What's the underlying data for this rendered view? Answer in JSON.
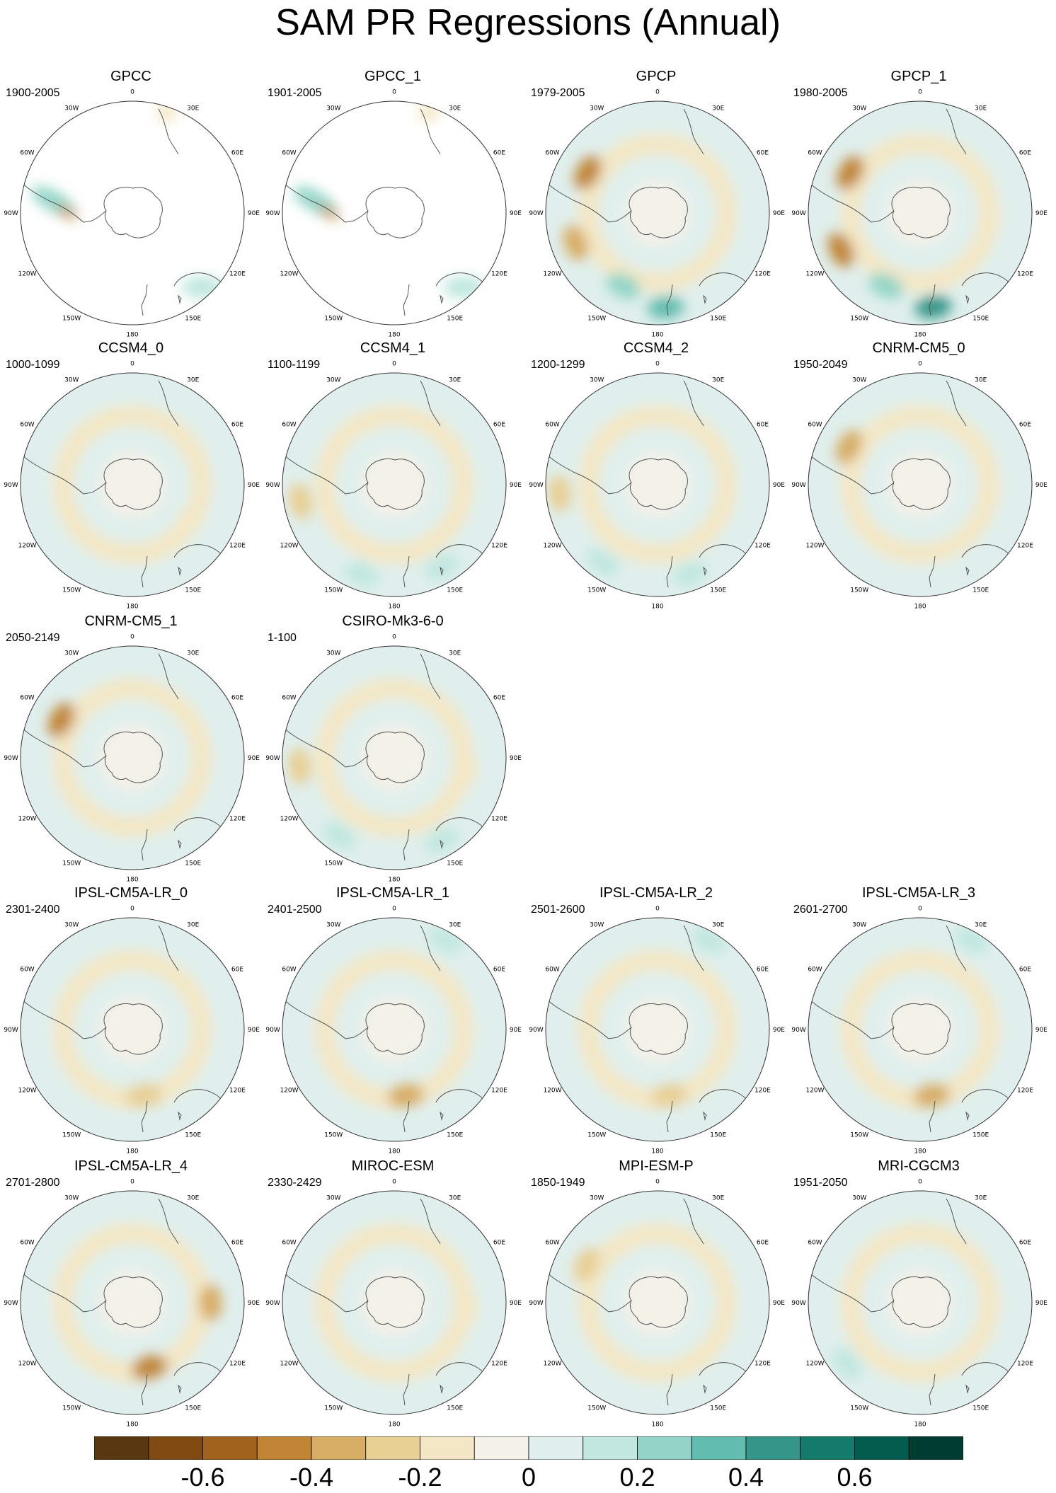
{
  "title": "SAM PR Regressions (Annual)",
  "longitude_labels": [
    "0",
    "30E",
    "60E",
    "90E",
    "120E",
    "150E",
    "180",
    "150W",
    "120W",
    "90W",
    "60W",
    "30W"
  ],
  "panels": [
    {
      "name": "GPCC",
      "period": "1900-2005",
      "mode": "obs_sparse",
      "anomalies": []
    },
    {
      "name": "GPCC_1",
      "period": "1901-2005",
      "mode": "obs_sparse",
      "anomalies": []
    },
    {
      "name": "GPCP",
      "period": "1979-2005",
      "mode": "full",
      "anomalies": [
        {
          "theta": 205,
          "r": 0.72,
          "level": 3
        },
        {
          "theta": 175,
          "r": 0.85,
          "level": 4
        },
        {
          "theta": 250,
          "r": 0.78,
          "level": -3
        },
        {
          "theta": 300,
          "r": 0.72,
          "level": -4
        }
      ]
    },
    {
      "name": "GPCP_1",
      "period": "1980-2005",
      "mode": "full",
      "anomalies": [
        {
          "theta": 205,
          "r": 0.72,
          "level": 3
        },
        {
          "theta": 172,
          "r": 0.85,
          "level": 5
        },
        {
          "theta": 245,
          "r": 0.78,
          "level": -4
        },
        {
          "theta": 300,
          "r": 0.72,
          "level": -4
        }
      ]
    },
    {
      "name": "CCSM4_0",
      "period": "1000-1099",
      "mode": "full",
      "anomalies": [
        {
          "theta": 210,
          "r": 0.9,
          "level": 1
        },
        {
          "theta": 125,
          "r": 0.6,
          "level": -1
        }
      ]
    },
    {
      "name": "CCSM4_1",
      "period": "1100-1199",
      "mode": "full",
      "anomalies": [
        {
          "theta": 200,
          "r": 0.85,
          "level": 2
        },
        {
          "theta": 150,
          "r": 0.85,
          "level": 2
        },
        {
          "theta": 260,
          "r": 0.85,
          "level": -2
        }
      ]
    },
    {
      "name": "CCSM4_2",
      "period": "1200-1299",
      "mode": "full",
      "anomalies": [
        {
          "theta": 215,
          "r": 0.85,
          "level": 2
        },
        {
          "theta": 160,
          "r": 0.85,
          "level": 2
        },
        {
          "theta": 265,
          "r": 0.88,
          "level": -2
        }
      ]
    },
    {
      "name": "CNRM-CM5_0",
      "period": "1950-2049",
      "mode": "full",
      "anomalies": [
        {
          "theta": 298,
          "r": 0.72,
          "level": -3
        }
      ]
    },
    {
      "name": "CNRM-CM5_1",
      "period": "2050-2149",
      "mode": "full",
      "anomalies": [
        {
          "theta": 298,
          "r": 0.72,
          "level": -4
        }
      ]
    },
    {
      "name": "CSIRO-Mk3-6-0",
      "period": "1-100",
      "mode": "full",
      "anomalies": [
        {
          "theta": 215,
          "r": 0.85,
          "level": 2
        },
        {
          "theta": 150,
          "r": 0.85,
          "level": 2
        },
        {
          "theta": 265,
          "r": 0.85,
          "level": -2
        },
        {
          "theta": 100,
          "r": 0.65,
          "level": -1
        }
      ]
    },
    {
      "name": "IPSL-CM5A-LR_0",
      "period": "2301-2400",
      "mode": "full",
      "anomalies": [
        {
          "theta": 170,
          "r": 0.6,
          "level": -2
        },
        {
          "theta": 30,
          "r": 0.92,
          "level": 1
        }
      ]
    },
    {
      "name": "IPSL-CM5A-LR_1",
      "period": "2401-2500",
      "mode": "full",
      "anomalies": [
        {
          "theta": 170,
          "r": 0.6,
          "level": -3
        },
        {
          "theta": 30,
          "r": 0.92,
          "level": 2
        }
      ]
    },
    {
      "name": "IPSL-CM5A-LR_2",
      "period": "2501-2600",
      "mode": "full",
      "anomalies": [
        {
          "theta": 170,
          "r": 0.6,
          "level": -2
        },
        {
          "theta": 30,
          "r": 0.92,
          "level": 2
        }
      ]
    },
    {
      "name": "IPSL-CM5A-LR_3",
      "period": "2601-2700",
      "mode": "full",
      "anomalies": [
        {
          "theta": 170,
          "r": 0.6,
          "level": -3
        },
        {
          "theta": 30,
          "r": 0.92,
          "level": 2
        }
      ]
    },
    {
      "name": "IPSL-CM5A-LR_4",
      "period": "2701-2800",
      "mode": "full",
      "anomalies": [
        {
          "theta": 165,
          "r": 0.6,
          "level": -4
        },
        {
          "theta": 90,
          "r": 0.7,
          "level": -3
        }
      ]
    },
    {
      "name": "MIROC-ESM",
      "period": "2330-2429",
      "mode": "full",
      "anomalies": [
        {
          "theta": 95,
          "r": 0.65,
          "level": -1
        }
      ]
    },
    {
      "name": "MPI-ESM-P",
      "period": "1850-1949",
      "mode": "full",
      "anomalies": [
        {
          "theta": 298,
          "r": 0.72,
          "level": -2
        }
      ]
    },
    {
      "name": "MRI-CGCM3",
      "period": "1951-2050",
      "mode": "full",
      "anomalies": [
        {
          "theta": 230,
          "r": 0.85,
          "level": 2
        }
      ]
    }
  ],
  "colorbar": {
    "colors": [
      "#583711",
      "#7f4b12",
      "#a0621c",
      "#c08434",
      "#d7ac64",
      "#e8cf94",
      "#f4e7c5",
      "#f4f1e8",
      "#e0efed",
      "#c1e7e0",
      "#92d5c8",
      "#62bcaf",
      "#349588",
      "#147a6c",
      "#045c4e",
      "#003c31"
    ],
    "tick_values": [
      -0.6,
      -0.4,
      -0.2,
      0,
      0.2,
      0.4,
      0.6
    ],
    "tick_labels": [
      "-0.6",
      "-0.4",
      "-0.2",
      "0",
      "0.2",
      "0.4",
      "0.6"
    ]
  }
}
